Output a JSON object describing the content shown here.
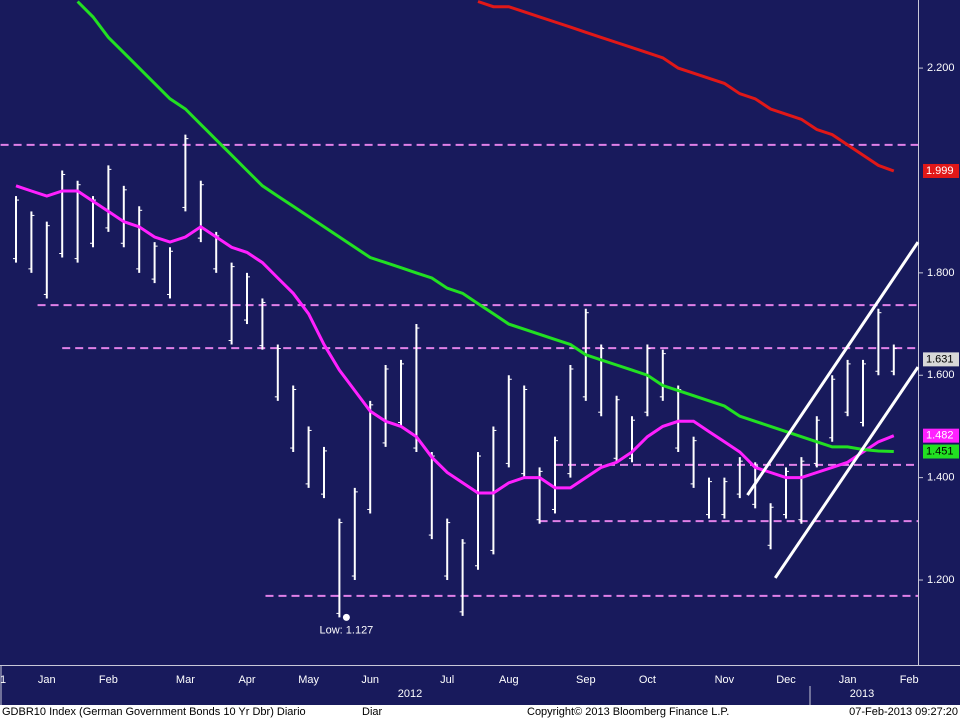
{
  "chart_data": {
    "type": "ohlc",
    "categories": [
      null,
      null,
      "Jan",
      null,
      null,
      null,
      "Feb",
      null,
      null,
      null,
      null,
      "Mar",
      null,
      null,
      null,
      "Apr",
      null,
      null,
      null,
      "May",
      null,
      null,
      null,
      "Jun",
      null,
      null,
      null,
      null,
      "Jul",
      null,
      null,
      null,
      "Aug",
      null,
      null,
      null,
      null,
      "Sep",
      null,
      null,
      null,
      "Oct",
      null,
      null,
      null,
      null,
      "Nov",
      null,
      null,
      null,
      "Dec",
      null,
      null,
      null,
      "Jan",
      null,
      null,
      null,
      "Feb"
    ],
    "x_edge_label": "1",
    "year_labels": [
      "2012",
      "2013"
    ],
    "price": {
      "color": "#ffffff",
      "high": [
        1.95,
        1.92,
        1.9,
        2.0,
        1.98,
        1.95,
        2.01,
        1.97,
        1.93,
        1.86,
        1.85,
        2.07,
        1.98,
        1.88,
        1.82,
        1.8,
        1.75,
        1.66,
        1.58,
        1.5,
        1.46,
        1.32,
        1.38,
        1.55,
        1.62,
        1.63,
        1.7,
        1.45,
        1.32,
        1.28,
        1.45,
        1.5,
        1.6,
        1.58,
        1.42,
        1.48,
        1.62,
        1.73,
        1.66,
        1.56,
        1.52,
        1.66,
        1.65,
        1.58,
        1.48,
        1.4,
        1.4,
        1.44,
        1.43,
        1.35,
        1.42,
        1.44,
        1.52,
        1.6,
        1.63,
        1.63,
        1.73,
        1.66,
        null
      ],
      "low": [
        1.82,
        1.8,
        1.75,
        1.83,
        1.82,
        1.85,
        1.88,
        1.85,
        1.8,
        1.78,
        1.75,
        1.92,
        1.86,
        1.8,
        1.66,
        1.7,
        1.65,
        1.55,
        1.45,
        1.38,
        1.36,
        1.127,
        1.2,
        1.33,
        1.46,
        1.5,
        1.45,
        1.28,
        1.2,
        1.13,
        1.22,
        1.25,
        1.42,
        1.4,
        1.31,
        1.33,
        1.4,
        1.55,
        1.52,
        1.43,
        1.43,
        1.52,
        1.55,
        1.45,
        1.38,
        1.32,
        1.32,
        1.36,
        1.34,
        1.26,
        1.32,
        1.31,
        1.42,
        1.47,
        1.52,
        1.5,
        1.6,
        1.6,
        null
      ],
      "last": 1.631
    },
    "series": [
      {
        "color": "#ff20ff",
        "values": [
          1.97,
          1.96,
          1.95,
          1.96,
          1.96,
          1.94,
          1.92,
          1.9,
          1.89,
          1.87,
          1.86,
          1.87,
          1.89,
          1.87,
          1.85,
          1.84,
          1.82,
          1.79,
          1.76,
          1.72,
          1.66,
          1.61,
          1.57,
          1.53,
          1.51,
          1.5,
          1.48,
          1.44,
          1.41,
          1.39,
          1.37,
          1.37,
          1.39,
          1.4,
          1.4,
          1.38,
          1.38,
          1.4,
          1.42,
          1.43,
          1.45,
          1.48,
          1.5,
          1.51,
          1.51,
          1.49,
          1.47,
          1.45,
          1.42,
          1.41,
          1.4,
          1.4,
          1.41,
          1.42,
          1.43,
          1.45,
          1.47,
          1.482,
          null
        ]
      },
      {
        "color": "#22e022",
        "values": [
          null,
          null,
          null,
          null,
          2.33,
          2.3,
          2.26,
          2.23,
          2.2,
          2.17,
          2.14,
          2.12,
          2.09,
          2.06,
          2.03,
          2.0,
          1.97,
          1.95,
          1.93,
          1.91,
          1.89,
          1.87,
          1.85,
          1.83,
          1.82,
          1.81,
          1.8,
          1.79,
          1.77,
          1.76,
          1.74,
          1.72,
          1.7,
          1.69,
          1.68,
          1.67,
          1.66,
          1.64,
          1.63,
          1.62,
          1.61,
          1.6,
          1.58,
          1.57,
          1.56,
          1.55,
          1.54,
          1.52,
          1.51,
          1.5,
          1.49,
          1.48,
          1.47,
          1.46,
          1.46,
          1.455,
          1.452,
          1.451,
          null
        ]
      },
      {
        "color": "#e01818",
        "values": [
          null,
          null,
          null,
          null,
          null,
          null,
          null,
          null,
          null,
          null,
          null,
          null,
          null,
          null,
          null,
          null,
          null,
          null,
          null,
          null,
          null,
          null,
          null,
          null,
          null,
          null,
          null,
          null,
          null,
          null,
          2.33,
          2.32,
          2.32,
          2.31,
          2.3,
          2.29,
          2.28,
          2.27,
          2.26,
          2.25,
          2.24,
          2.23,
          2.22,
          2.2,
          2.19,
          2.18,
          2.17,
          2.15,
          2.14,
          2.12,
          2.11,
          2.1,
          2.08,
          2.07,
          2.05,
          2.03,
          2.01,
          1.999,
          null
        ]
      }
    ],
    "levels": [
      {
        "value": 2.05,
        "from": -1
      },
      {
        "value": 1.737,
        "from": 1.4
      },
      {
        "value": 1.653,
        "from": 3
      },
      {
        "value": 1.425,
        "from": 35
      },
      {
        "value": 1.315,
        "from": 34
      },
      {
        "value": 1.169,
        "from": 16.2
      }
    ],
    "level_color": "#e080e8",
    "trendlines": [
      {
        "x": [
          47.5,
          58.6
        ],
        "y": [
          1.366,
          1.86
        ]
      },
      {
        "x": [
          49.3,
          58.6
        ],
        "y": [
          1.204,
          1.616
        ]
      }
    ],
    "annotation": {
      "text": "Low: 1.127",
      "x": 21,
      "y": 1.127
    },
    "ylim": [
      1.034,
      2.333
    ],
    "yticks": [
      {
        "value": 2.2,
        "label": "2.200"
      },
      {
        "value": 1.8,
        "label": "1.800"
      },
      {
        "value": 1.6,
        "label": "1.600"
      },
      {
        "value": 1.4,
        "label": "1.400"
      },
      {
        "value": 1.2,
        "label": "1.200"
      }
    ],
    "footer": {
      "ticker": "GDBR10 Index (German Government Bonds 10 Yr Dbr) Diario",
      "period": "Diar",
      "copyright": "Copyright© 2013 Bloomberg Finance L.P.",
      "timestamp": "07-Feb-2013 09:27:20"
    }
  }
}
